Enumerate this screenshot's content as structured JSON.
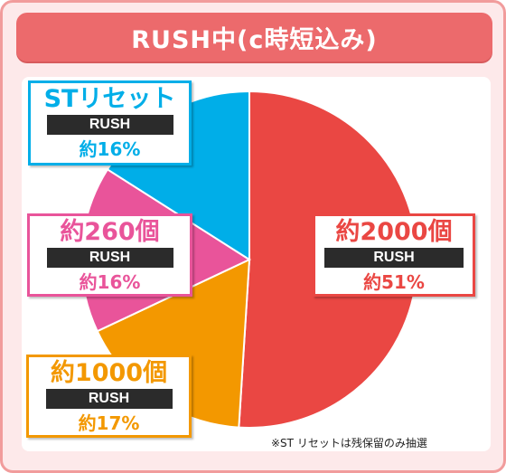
{
  "header": {
    "title": "RUSH中(c時短込み)"
  },
  "chart_data": {
    "type": "pie",
    "title": "RUSH中(c時短込み)",
    "slices": [
      {
        "label": "約2000個",
        "sub": "RUSH",
        "pct_label": "約51%",
        "value": 51,
        "color": "#ea4743",
        "text_color": "#ea4743"
      },
      {
        "label": "約1000個",
        "sub": "RUSH",
        "pct_label": "約17%",
        "value": 17,
        "color": "#f39800",
        "text_color": "#f39800"
      },
      {
        "label": "約260個",
        "sub": "RUSH",
        "pct_label": "約16%",
        "value": 16,
        "color": "#e9549a",
        "text_color": "#e9549a"
      },
      {
        "label": "STリセット",
        "sub": "RUSH",
        "pct_label": "約16%",
        "value": 16,
        "color": "#00aee8",
        "text_color": "#00aee8"
      }
    ]
  },
  "footnote": "※ST リセットは残保留のみ抽選",
  "colors": {
    "frame_border": "#f19c9c",
    "frame_bg": "#fde9ea",
    "header_bg": "#ec6a6c"
  }
}
